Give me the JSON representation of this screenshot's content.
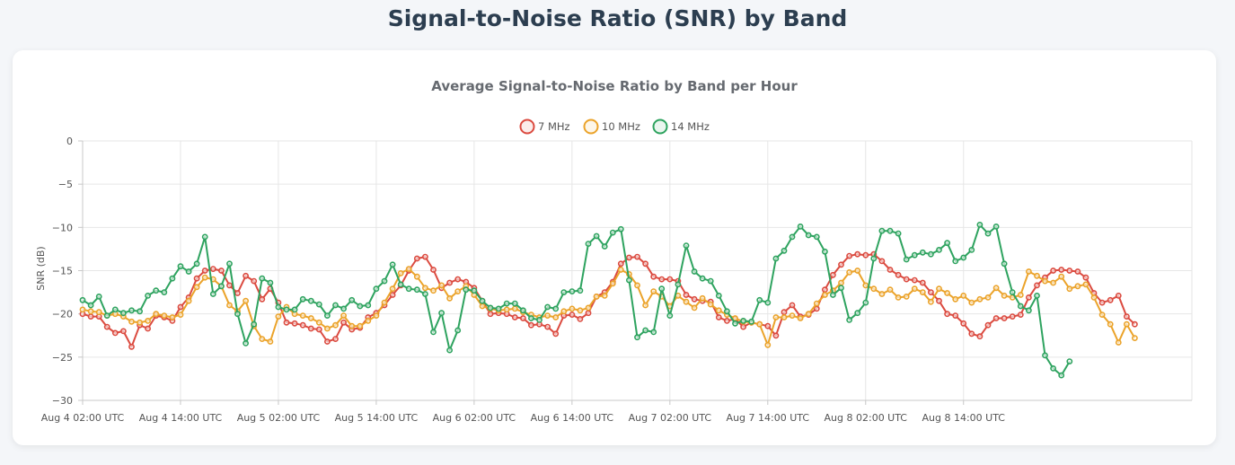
{
  "page": {
    "title": "Signal-to-Noise Ratio (SNR) by Band"
  },
  "chart_data": {
    "type": "line",
    "title": "Average Signal-to-Noise Ratio by Band per Hour",
    "xlabel": "",
    "ylabel": "SNR (dB)",
    "ylim": [
      -30,
      0
    ],
    "yticks": [
      0,
      -5,
      -10,
      -15,
      -20,
      -25,
      -30
    ],
    "x_start": "Aug 4 00:00 UTC",
    "x_step_hours": 1,
    "x_range_hours": [
      2,
      138
    ],
    "x_tick_hours": [
      2,
      14,
      26,
      38,
      50,
      62,
      74,
      86,
      98,
      110
    ],
    "x_tick_labels": [
      "Aug 4 02:00 UTC",
      "Aug 4 14:00 UTC",
      "Aug 5 02:00 UTC",
      "Aug 5 14:00 UTC",
      "Aug 6 02:00 UTC",
      "Aug 6 14:00 UTC",
      "Aug 7 02:00 UTC",
      "Aug 7 14:00 UTC",
      "Aug 8 02:00 UTC",
      "Aug 8 14:00 UTC"
    ],
    "grid": true,
    "legend_position": "top-center",
    "series": [
      {
        "name": "7 MHz",
        "color": "#db4a3f",
        "values": [
          -20,
          -20.3,
          -20.3,
          -21.5,
          -22.2,
          -22,
          -23.8,
          -21.3,
          -21.7,
          -20.2,
          -20.4,
          -20.8,
          -19.2,
          -18.1,
          -15.9,
          -15,
          -14.8,
          -15,
          -16.7,
          -17.6,
          -15.6,
          -16.2,
          -18.3,
          -17.1,
          -18.7,
          -21,
          -21.1,
          -21.3,
          -21.7,
          -21.8,
          -23.2,
          -22.9,
          -21,
          -21.8,
          -21.6,
          -20.4,
          -19.9,
          -19,
          -17.8,
          -16.7,
          -15,
          -13.6,
          -13.4,
          -14.9,
          -17,
          -16.4,
          -16,
          -16.3,
          -17,
          -18.5,
          -20,
          -19.9,
          -20,
          -20.4,
          -20.5,
          -21.3,
          -21.2,
          -21.5,
          -22.3,
          -20.2,
          -20.1,
          -20.6,
          -19.9,
          -18,
          -17.5,
          -16.3,
          -14.2,
          -13.5,
          -13.4,
          -14.2,
          -15.7,
          -16,
          -16,
          -16.2,
          -17.8,
          -18.3,
          -18.5,
          -18.6,
          -20.4,
          -20.8,
          -20.6,
          -21.5,
          -21,
          -21.2,
          -21.4,
          -22.5,
          -19.8,
          -19,
          -20.3,
          -20.1,
          -19.4,
          -17.2,
          -15.5,
          -14.3,
          -13.3,
          -13.1,
          -13.2,
          -13.1,
          -13.9,
          -14.9,
          -15.5,
          -16,
          -16.1,
          -16.4,
          -17.5,
          -18.5,
          -20,
          -20.2,
          -21.1,
          -22.3,
          -22.6,
          -21.3,
          -20.5,
          -20.5,
          -20.3,
          -20.1,
          -18.1,
          -16.7,
          -15.8,
          -15,
          -14.9,
          -15,
          -15.1,
          -15.8,
          -17.6,
          -18.7,
          -18.4,
          -17.9,
          -20.3,
          -21.2
        ]
      },
      {
        "name": "10 MHz",
        "color": "#eba32a",
        "values": [
          -19.5,
          -19.7,
          -19.8,
          -20.2,
          -20,
          -20.3,
          -20.9,
          -21,
          -20.8,
          -20,
          -20.2,
          -20.4,
          -20.1,
          -18.5,
          -16.9,
          -15.8,
          -16,
          -16.8,
          -19,
          -19.7,
          -18.5,
          -21.4,
          -22.9,
          -23.2,
          -20.3,
          -19.2,
          -20,
          -20.2,
          -20.5,
          -21,
          -21.7,
          -21.3,
          -20.2,
          -21.4,
          -21.4,
          -20.8,
          -20.2,
          -18.7,
          -17.1,
          -15.3,
          -14.8,
          -15.7,
          -17,
          -17.3,
          -16.7,
          -18.2,
          -17.4,
          -16.8,
          -17.8,
          -19.1,
          -19.4,
          -19.6,
          -19.5,
          -19.4,
          -19.8,
          -20.1,
          -20.4,
          -20.2,
          -20.4,
          -19.7,
          -19.4,
          -19.6,
          -19.3,
          -18,
          -17.9,
          -16.5,
          -14.9,
          -15.4,
          -16.7,
          -19,
          -17.4,
          -18,
          -19.1,
          -17.9,
          -18.6,
          -19.3,
          -18.2,
          -18.9,
          -19.6,
          -20.1,
          -20.5,
          -20.9,
          -21,
          -21.2,
          -23.6,
          -20.4,
          -20.4,
          -20.2,
          -20.5,
          -20,
          -18.8,
          -17.8,
          -17.3,
          -16.4,
          -15.2,
          -15,
          -16.7,
          -17.1,
          -17.7,
          -17.2,
          -18.1,
          -18,
          -17.1,
          -17.5,
          -18.6,
          -17.1,
          -17.6,
          -18.3,
          -17.9,
          -18.7,
          -18.3,
          -18.1,
          -17,
          -17.9,
          -18.1,
          -17.8,
          -15.1,
          -15.6,
          -16.2,
          -16.4,
          -15.7,
          -17.1,
          -16.8,
          -16.6,
          -18.1,
          -20.1,
          -21.2,
          -23.3,
          -21.2,
          -22.8
        ]
      },
      {
        "name": "14 MHz",
        "color": "#2ea35f",
        "values": [
          -18.4,
          -19,
          -18,
          -20.2,
          -19.5,
          -19.9,
          -19.6,
          -19.7,
          -17.9,
          -17.3,
          -17.5,
          -15.9,
          -14.5,
          -15.1,
          -14.2,
          -11.1,
          -17.7,
          -16.8,
          -14.2,
          -20,
          -23.4,
          -21.2,
          -15.9,
          -16.4,
          -19.2,
          -19.5,
          -19.5,
          -18.3,
          -18.5,
          -18.9,
          -20.2,
          -19,
          -19.4,
          -18.4,
          -19.1,
          -19,
          -17.1,
          -16.2,
          -14.3,
          -16.6,
          -17.1,
          -17.2,
          -17.7,
          -22.1,
          -19.9,
          -24.2,
          -21.9,
          -17.2,
          -17.3,
          -18.5,
          -19.3,
          -19.4,
          -18.8,
          -18.8,
          -19.6,
          -20.5,
          -20.7,
          -19.2,
          -19.4,
          -17.5,
          -17.4,
          -17.3,
          -11.9,
          -11,
          -12.2,
          -10.6,
          -10.2,
          -16.1,
          -22.7,
          -21.9,
          -22.1,
          -17.1,
          -20.2,
          -16.6,
          -12.1,
          -15.1,
          -15.9,
          -16.2,
          -17.9,
          -19.7,
          -21.1,
          -20.8,
          -20.9,
          -18.4,
          -18.7,
          -13.6,
          -12.7,
          -11.1,
          -9.9,
          -10.9,
          -11.1,
          -12.8,
          -17.8,
          -17,
          -20.7,
          -19.9,
          -18.7,
          -13.6,
          -10.4,
          -10.4,
          -10.7,
          -13.7,
          -13.2,
          -12.9,
          -13.1,
          -12.6,
          -11.8,
          -13.9,
          -13.5,
          -12.6,
          -9.7,
          -10.7,
          -9.9,
          -14.2,
          -17.5,
          -19.1,
          -19.6,
          -17.9,
          -24.8,
          -26.3,
          -27.1,
          -25.5
        ]
      }
    ]
  }
}
